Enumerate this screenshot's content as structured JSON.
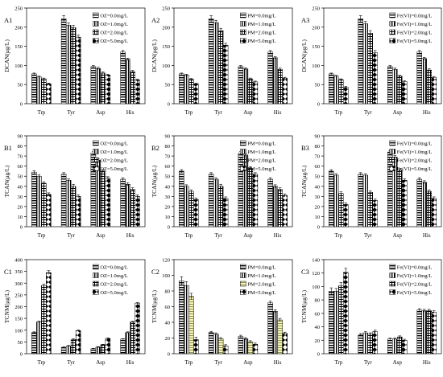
{
  "chart_data": [
    {
      "panel": "A1",
      "type": "bar",
      "ylabel": "DCAN(μg/L)",
      "ylim": [
        0,
        250
      ],
      "yticks": [
        0,
        50,
        100,
        150,
        200,
        250
      ],
      "categories": [
        "Trp",
        "Tyr",
        "Asp",
        "His"
      ],
      "series": [
        {
          "name": "OZ=0.0mg/L",
          "values": [
            78,
            222,
            97,
            135
          ],
          "errors": [
            2,
            8,
            3,
            4
          ]
        },
        {
          "name": "OZ=1.0mg/L",
          "values": [
            70,
            205,
            92,
            116
          ],
          "errors": [
            2,
            6,
            3,
            3
          ]
        },
        {
          "name": "OZ=2.0mg/L",
          "values": [
            65,
            199,
            80,
            84
          ],
          "errors": [
            2,
            6,
            3,
            3
          ]
        },
        {
          "name": "OZ=5.0mg/L",
          "values": [
            52,
            174,
            75,
            62
          ],
          "errors": [
            2,
            5,
            2,
            2
          ]
        }
      ]
    },
    {
      "panel": "A2",
      "type": "bar",
      "ylabel": "DCAN(μg/L)",
      "ylim": [
        0,
        250
      ],
      "yticks": [
        0,
        50,
        100,
        150,
        200,
        250
      ],
      "categories": [
        "Trp",
        "Tyr",
        "Asp",
        "His"
      ],
      "series": [
        {
          "name": "PM=0.0mg/L",
          "values": [
            78,
            222,
            97,
            135
          ],
          "errors": [
            2,
            8,
            3,
            4
          ]
        },
        {
          "name": "PM=1.0mg/L",
          "values": [
            75,
            212,
            91,
            120
          ],
          "errors": [
            2,
            6,
            3,
            3
          ]
        },
        {
          "name": "PM=2.0mg/L",
          "values": [
            64,
            191,
            65,
            90
          ],
          "errors": [
            2,
            6,
            2,
            3
          ]
        },
        {
          "name": "PM=5.0mg/L",
          "values": [
            52,
            153,
            57,
            67
          ],
          "errors": [
            2,
            5,
            2,
            2
          ]
        }
      ]
    },
    {
      "panel": "A3",
      "type": "bar",
      "ylabel": "DCAN(μg/L)",
      "ylim": [
        0,
        250
      ],
      "yticks": [
        0,
        50,
        100,
        150,
        200,
        250
      ],
      "categories": [
        "Trp",
        "Tyr",
        "Asp",
        "His"
      ],
      "series": [
        {
          "name": "Fe(VI)=0.0mg/L",
          "values": [
            78,
            222,
            97,
            135
          ],
          "errors": [
            2,
            8,
            3,
            4
          ]
        },
        {
          "name": "Fe(VI)=1.0mg/L",
          "values": [
            72,
            209,
            90,
            118
          ],
          "errors": [
            2,
            6,
            3,
            3
          ]
        },
        {
          "name": "Fe(VI)=2.0mg/L",
          "values": [
            63,
            184,
            72,
            88
          ],
          "errors": [
            2,
            7,
            3,
            3
          ]
        },
        {
          "name": "Fe(VI)=5.0mg/L",
          "values": [
            43,
            133,
            58,
            69
          ],
          "errors": [
            2,
            6,
            2,
            2
          ]
        }
      ]
    },
    {
      "panel": "B1",
      "type": "bar",
      "ylabel": "TCAN(μg/L)",
      "ylim": [
        0,
        90
      ],
      "yticks": [
        0,
        10,
        20,
        30,
        40,
        50,
        60,
        70,
        80,
        90
      ],
      "categories": [
        "Trp",
        "Tyr",
        "Asp",
        "His"
      ],
      "series": [
        {
          "name": "OZ=0.0mg/L",
          "values": [
            54,
            52,
            73,
            47
          ],
          "errors": [
            1.5,
            1.5,
            1.5,
            1.5
          ]
        },
        {
          "name": "OZ=1.0mg/L",
          "values": [
            50,
            46,
            66,
            42
          ],
          "errors": [
            1.5,
            1.5,
            1.5,
            1.5
          ]
        },
        {
          "name": "OZ=2.0mg/L",
          "values": [
            43,
            40,
            55,
            37
          ],
          "errors": [
            1.5,
            2,
            1.5,
            1.5
          ]
        },
        {
          "name": "OZ=5.0mg/L",
          "values": [
            32,
            30,
            48,
            30
          ],
          "errors": [
            1.5,
            1.5,
            1.5,
            1.5
          ]
        }
      ]
    },
    {
      "panel": "B2",
      "type": "bar",
      "ylabel": "TCAN(μg/L)",
      "ylim": [
        0,
        90
      ],
      "yticks": [
        0,
        10,
        20,
        30,
        40,
        50,
        60,
        70,
        80,
        90
      ],
      "categories": [
        "Trp",
        "Tyr",
        "Asp",
        "His"
      ],
      "series": [
        {
          "name": "PM=0.0mg/L",
          "values": [
            55,
            52,
            73,
            47
          ],
          "errors": [
            1.5,
            1.5,
            1.5,
            1.5
          ]
        },
        {
          "name": "PM=1.0mg/L",
          "values": [
            40,
            47,
            71,
            40
          ],
          "errors": [
            1.5,
            1.5,
            1.5,
            1.5
          ]
        },
        {
          "name": "PM=2.0mg/L",
          "values": [
            35,
            40,
            58,
            37
          ],
          "errors": [
            1.5,
            2,
            1.5,
            1.5
          ]
        },
        {
          "name": "PM=5.0mg/L",
          "values": [
            27,
            28,
            52,
            31
          ],
          "errors": [
            1.5,
            1.5,
            1.5,
            1.5
          ]
        }
      ]
    },
    {
      "panel": "B3",
      "type": "bar",
      "ylabel": "TCAN(μg/L)",
      "ylim": [
        0,
        90
      ],
      "yticks": [
        0,
        10,
        20,
        30,
        40,
        50,
        60,
        70,
        80,
        90
      ],
      "categories": [
        "Trp",
        "Tyr",
        "Asp",
        "His"
      ],
      "series": [
        {
          "name": "Fe(VI)=0.0mg/L",
          "values": [
            55,
            52,
            74,
            47
          ],
          "errors": [
            1.5,
            1.5,
            1.5,
            1.5
          ]
        },
        {
          "name": "Fe(VI)=1.0mg/L",
          "values": [
            51,
            51,
            69,
            44
          ],
          "errors": [
            1.5,
            1.5,
            1.5,
            1.5
          ]
        },
        {
          "name": "Fe(VI)=2.0mg/L",
          "values": [
            33,
            34,
            56,
            35
          ],
          "errors": [
            1.5,
            1.5,
            1.5,
            1.5
          ]
        },
        {
          "name": "Fe(VI)=5.0mg/L",
          "values": [
            22,
            26,
            46,
            28
          ],
          "errors": [
            1.5,
            1.5,
            1.5,
            1.5
          ]
        }
      ]
    },
    {
      "panel": "C1",
      "type": "bar",
      "ylabel": "TCNM(μg/L)",
      "ylim": [
        0,
        400
      ],
      "yticks": [
        0,
        50,
        100,
        150,
        200,
        250,
        300,
        350,
        400
      ],
      "categories": [
        "Trp",
        "Tyr",
        "Asp",
        "His"
      ],
      "series": [
        {
          "name": "OZ=0.0mg/L",
          "values": [
            90,
            27,
            21,
            62
          ],
          "errors": [
            3,
            2,
            2,
            2
          ]
        },
        {
          "name": "OZ=1.0mg/L",
          "values": [
            135,
            33,
            28,
            90
          ],
          "errors": [
            4,
            2,
            2,
            3
          ]
        },
        {
          "name": "OZ=2.0mg/L",
          "values": [
            290,
            60,
            38,
            135
          ],
          "errors": [
            6,
            3,
            2,
            3
          ]
        },
        {
          "name": "OZ=5.0mg/L",
          "values": [
            345,
            98,
            65,
            215
          ],
          "errors": [
            8,
            3,
            2,
            3
          ]
        }
      ]
    },
    {
      "panel": "C2",
      "type": "bar",
      "ylabel": "TCNM(μg/L)",
      "ylim": [
        0,
        120
      ],
      "yticks": [
        0,
        20,
        40,
        60,
        80,
        100,
        120
      ],
      "categories": [
        "Trp",
        "Tyr",
        "Asp",
        "His"
      ],
      "series": [
        {
          "name": "PM=0.0mg/L",
          "values": [
            93,
            27,
            22,
            65
          ],
          "errors": [
            5,
            1.5,
            1.5,
            2
          ]
        },
        {
          "name": "PM=1.0mg/L",
          "values": [
            87,
            25,
            19,
            54
          ],
          "errors": [
            5,
            1.5,
            1.5,
            2
          ]
        },
        {
          "name": "PM=2.0mg/L",
          "values": [
            73,
            19,
            15,
            43
          ],
          "errors": [
            4,
            1.5,
            1.5,
            2
          ]
        },
        {
          "name": "PM=5.0mg/L",
          "values": [
            18,
            10,
            12,
            26
          ],
          "errors": [
            3,
            1.5,
            1.5,
            1.5
          ]
        }
      ]
    },
    {
      "panel": "C3",
      "type": "bar",
      "ylabel": "TCNM(μg/L)",
      "ylim": [
        0,
        140
      ],
      "yticks": [
        0,
        20,
        40,
        60,
        80,
        100,
        120,
        140
      ],
      "categories": [
        "Trp",
        "Tyr",
        "Asp",
        "His"
      ],
      "series": [
        {
          "name": "Fe(VI)=0.0mg/L",
          "values": [
            93,
            28,
            22,
            65
          ],
          "errors": [
            5,
            2,
            1.5,
            2
          ]
        },
        {
          "name": "Fe(VI)=1.0mg/L",
          "values": [
            93,
            31,
            22,
            64
          ],
          "errors": [
            4,
            2,
            1.5,
            2
          ]
        },
        {
          "name": "Fe(VI)=2.0mg/L",
          "values": [
            101,
            29,
            25,
            64
          ],
          "errors": [
            5,
            2,
            1.5,
            2
          ]
        },
        {
          "name": "Fe(VI)=5.0mg/L",
          "values": [
            121,
            33,
            20,
            62
          ],
          "errors": [
            6,
            2,
            1.5,
            2
          ]
        }
      ]
    }
  ]
}
